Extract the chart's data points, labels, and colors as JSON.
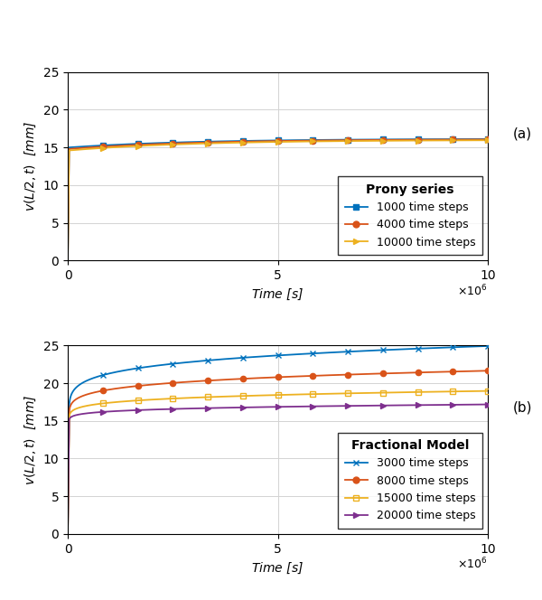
{
  "title_a": "Prony series",
  "title_b": "Fractional Model",
  "xlim": [
    0,
    10000000.0
  ],
  "ylim": [
    0,
    25
  ],
  "yticks": [
    0,
    5,
    10,
    15,
    20,
    25
  ],
  "xticks": [
    0,
    5000000,
    10000000
  ],
  "xtick_labels": [
    "0",
    "5",
    "10"
  ],
  "panel_a": {
    "annotation": "(a)",
    "series": [
      {
        "label": "1000 time steps",
        "color": "#0072BD",
        "marker": "s",
        "y_instant": 15.0,
        "y_asymptote": 16.15,
        "tau": 3000000.0
      },
      {
        "label": "4000 time steps",
        "color": "#D95319",
        "marker": "o",
        "y_instant": 14.8,
        "y_asymptote": 16.1,
        "tau": 3000000.0
      },
      {
        "label": "10000 time steps",
        "color": "#EDB120",
        "marker": ">",
        "y_instant": 14.6,
        "y_asymptote": 16.0,
        "tau": 3000000.0
      }
    ],
    "n_markers": 12,
    "instant_rise_t": 30000
  },
  "panel_b": {
    "annotation": "(b)",
    "series": [
      {
        "label": "3000 time steps",
        "color": "#0072BD",
        "marker": "x",
        "y_instant": 14.5,
        "A": 7.0,
        "alpha": 0.18
      },
      {
        "label": "8000 time steps",
        "color": "#D95319",
        "marker": "o",
        "y_instant": 14.5,
        "A": 4.8,
        "alpha": 0.18
      },
      {
        "label": "15000 time steps",
        "color": "#EDB120",
        "marker": "s",
        "y_instant": 14.5,
        "A": 3.0,
        "alpha": 0.18
      },
      {
        "label": "20000 time steps",
        "color": "#7E2F8E",
        "marker": ">",
        "y_instant": 14.5,
        "A": 1.8,
        "alpha": 0.18
      }
    ],
    "n_markers": 12,
    "instant_rise_t": 30000
  },
  "background_color": "#ffffff",
  "grid_color": "#d3d3d3",
  "marker_size": 4.5,
  "line_width": 1.3
}
